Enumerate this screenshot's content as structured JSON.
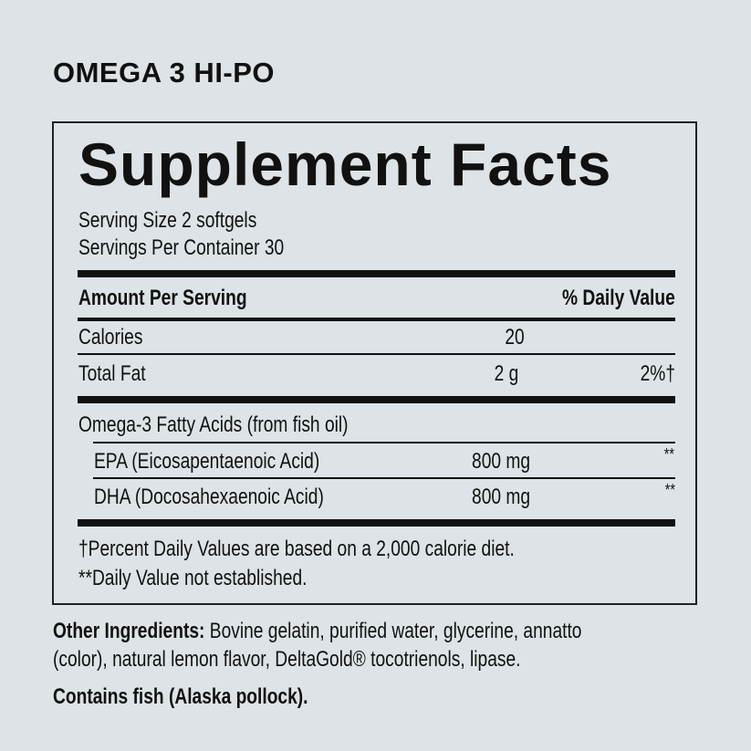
{
  "product_name": "OMEGA 3 HI-PO",
  "panel_title": "Supplement Facts",
  "serving_size": "Serving Size 2 softgels",
  "servings_per_container": "Servings Per Container 30",
  "header": {
    "amount": "Amount Per Serving",
    "dv": "% Daily Value"
  },
  "rows": [
    {
      "label": "Calories",
      "amount": "20",
      "dv": ""
    },
    {
      "label": "Total Fat",
      "amount": "2 g",
      "dv": "2%†"
    }
  ],
  "omega_heading": "Omega-3 Fatty Acids (from fish oil)",
  "sub_rows": [
    {
      "label": "EPA (Eicosapentaenoic Acid)",
      "amount": "800 mg",
      "dv": "**"
    },
    {
      "label": "DHA (Docosahexaenoic Acid)",
      "amount": "800 mg",
      "dv": "**"
    }
  ],
  "footnotes": [
    "†Percent Daily Values are based on a 2,000 calorie diet.",
    "**Daily Value not established."
  ],
  "other_ingredients": {
    "label": "Other Ingredients:",
    "line1": " Bovine gelatin, purified water, glycerine, annatto",
    "line2": "(color), natural lemon flavor, DeltaGold® tocotrienols, lipase."
  },
  "allergen": "Contains fish (Alaska pollock)."
}
